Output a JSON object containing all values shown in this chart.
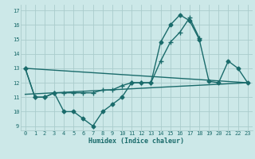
{
  "xlabel": "Humidex (Indice chaleur)",
  "bg_color": "#cce8e8",
  "grid_color": "#aacccc",
  "line_color": "#1a6b6b",
  "xlim": [
    -0.5,
    23.5
  ],
  "ylim": [
    8.7,
    17.4
  ],
  "yticks": [
    9,
    10,
    11,
    12,
    13,
    14,
    15,
    16,
    17
  ],
  "xticks": [
    0,
    1,
    2,
    3,
    4,
    5,
    6,
    7,
    8,
    9,
    10,
    11,
    12,
    13,
    14,
    15,
    16,
    17,
    18,
    19,
    20,
    21,
    22,
    23
  ],
  "lines": [
    {
      "x": [
        0,
        1,
        2,
        3,
        4,
        5,
        6,
        7,
        8,
        9,
        10,
        11,
        12,
        13,
        14,
        15,
        16,
        17,
        18,
        19,
        20,
        21,
        22,
        23
      ],
      "y": [
        13,
        11,
        11,
        11.3,
        10,
        10,
        9.5,
        9,
        10,
        10.5,
        11,
        12,
        12,
        12,
        14.8,
        16,
        16.7,
        16.3,
        15,
        12.1,
        12,
        13.5,
        13,
        12
      ],
      "marker": "D",
      "markersize": 2.5,
      "linewidth": 1.0
    },
    {
      "x": [
        0,
        1,
        2,
        3,
        4,
        5,
        6,
        7,
        8,
        9,
        10,
        11,
        12,
        13,
        14,
        15,
        16,
        17,
        18
      ],
      "y": [
        13,
        11,
        11,
        11.3,
        11.3,
        11.3,
        11.3,
        11.3,
        11.5,
        11.5,
        11.8,
        12,
        12,
        12,
        13.5,
        14.8,
        15.5,
        16.5,
        15.1
      ],
      "marker": "+",
      "markersize": 4,
      "linewidth": 1.0
    },
    {
      "x": [
        0,
        23
      ],
      "y": [
        11.2,
        12.0
      ],
      "marker": null,
      "markersize": 0,
      "linewidth": 1.0
    },
    {
      "x": [
        0,
        23
      ],
      "y": [
        13.0,
        12.0
      ],
      "marker": null,
      "markersize": 0,
      "linewidth": 1.0
    }
  ]
}
